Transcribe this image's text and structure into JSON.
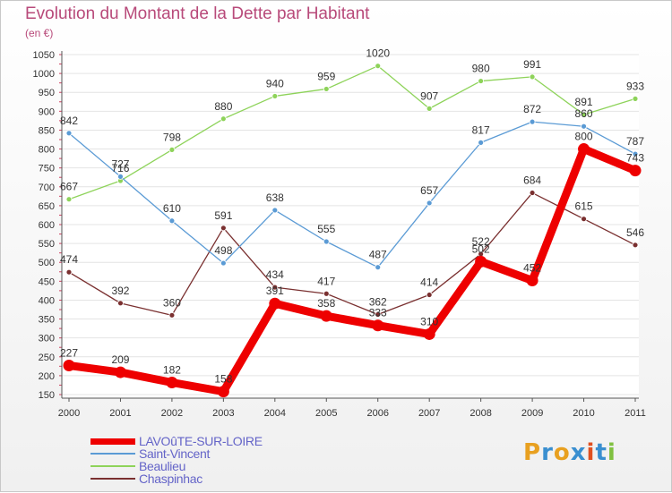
{
  "title": "Evolution du Montant de la Dette par Habitant",
  "subtitle": "(en €)",
  "logo": {
    "text": "Proxiti",
    "colors": [
      "#e8a020",
      "#3a8fd0",
      "#e8a020",
      "#3a8fd0",
      "#e05020",
      "#3a8fd0",
      "#80c040"
    ]
  },
  "chart_data": {
    "type": "line",
    "title": "Evolution du Montant de la Dette par Habitant",
    "ylabel": "(en €)",
    "xlabel": "",
    "x": [
      2000,
      2001,
      2002,
      2003,
      2004,
      2005,
      2006,
      2007,
      2008,
      2009,
      2010,
      2011
    ],
    "ylim": [
      150,
      1050
    ],
    "yticks": [
      150,
      200,
      250,
      300,
      350,
      400,
      450,
      500,
      550,
      600,
      650,
      700,
      750,
      800,
      850,
      900,
      950,
      1000,
      1050
    ],
    "grid": "horizontal",
    "legend_position": "bottom-left",
    "series": [
      {
        "name": "LAVOûTE-SUR-LOIRE",
        "color": "#ee0000",
        "values": [
          227,
          209,
          182,
          158,
          391,
          358,
          333,
          310,
          502,
          452,
          800,
          743
        ],
        "labels": [
          "227",
          "209",
          "182",
          "158",
          "391",
          "358",
          "333",
          "310",
          "502",
          "452",
          "800",
          "743"
        ]
      },
      {
        "name": "Saint-Vincent",
        "color": "#5b9bd5",
        "values": [
          842,
          727,
          610,
          498,
          638,
          555,
          487,
          657,
          817,
          872,
          860,
          787
        ],
        "labels": [
          "842",
          "727",
          "610",
          "498",
          "638",
          "555",
          "487",
          "657",
          "817",
          "872",
          "860",
          "787"
        ]
      },
      {
        "name": "Beaulieu",
        "color": "#8ed35a",
        "values": [
          667,
          716,
          798,
          880,
          940,
          959,
          1020,
          907,
          980,
          991,
          891,
          933
        ],
        "labels": [
          "667",
          "716",
          "798",
          "880",
          "940",
          "959",
          "1020",
          "907",
          "980",
          "991",
          "891",
          "933"
        ]
      },
      {
        "name": "Chaspinhac",
        "color": "#7a3030",
        "values": [
          474,
          392,
          360,
          591,
          434,
          417,
          362,
          414,
          522,
          684,
          615,
          546
        ],
        "labels": [
          "474",
          "392",
          "360",
          "591",
          "434",
          "417",
          "362",
          "414",
          "522",
          "684",
          "615",
          "546"
        ]
      }
    ]
  }
}
